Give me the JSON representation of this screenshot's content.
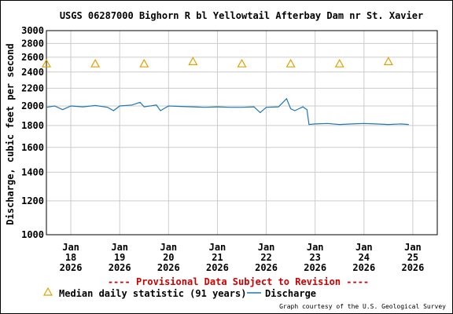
{
  "chart_data": {
    "type": "line",
    "title": "USGS 06287000 Bighorn R bl Yellowtail Afterbay Dam nr St. Xavier",
    "ylabel": "Discharge, cubic feet per second",
    "xlabel": "",
    "yscale": "log",
    "ylim": [
      1000,
      3000
    ],
    "yticks": [
      1000,
      1200,
      1400,
      1600,
      1800,
      2000,
      2200,
      2400,
      2600,
      2800,
      3000
    ],
    "ytick_labels": [
      "1000",
      "1200",
      "1400",
      "1600",
      "1800",
      "2000",
      "2200",
      "2400",
      "2600",
      "2800",
      "3000"
    ],
    "xlim": [
      "2026-01-17T12:00",
      "2026-01-25T12:00"
    ],
    "xticks": [
      {
        "month": "Jan",
        "day": "18",
        "year": "2026",
        "t": "2026-01-18"
      },
      {
        "month": "Jan",
        "day": "19",
        "year": "2026",
        "t": "2026-01-19"
      },
      {
        "month": "Jan",
        "day": "20",
        "year": "2026",
        "t": "2026-01-20"
      },
      {
        "month": "Jan",
        "day": "21",
        "year": "2026",
        "t": "2026-01-21"
      },
      {
        "month": "Jan",
        "day": "22",
        "year": "2026",
        "t": "2026-01-22"
      },
      {
        "month": "Jan",
        "day": "23",
        "year": "2026",
        "t": "2026-01-23"
      },
      {
        "month": "Jan",
        "day": "24",
        "year": "2026",
        "t": "2026-01-24"
      },
      {
        "month": "Jan",
        "day": "25",
        "year": "2026",
        "t": "2026-01-25"
      }
    ],
    "grid": true,
    "series": [
      {
        "name": "Discharge",
        "color": "#1f77b4",
        "style": "line",
        "points": [
          {
            "t": "2026-01-17T12:00",
            "v": 1985
          },
          {
            "t": "2026-01-17T16:00",
            "v": 2000
          },
          {
            "t": "2026-01-17T20:00",
            "v": 1960
          },
          {
            "t": "2026-01-18T00:00",
            "v": 2000
          },
          {
            "t": "2026-01-18T06:00",
            "v": 1990
          },
          {
            "t": "2026-01-18T12:00",
            "v": 2005
          },
          {
            "t": "2026-01-18T18:00",
            "v": 1985
          },
          {
            "t": "2026-01-18T21:00",
            "v": 1950
          },
          {
            "t": "2026-01-19T00:00",
            "v": 2000
          },
          {
            "t": "2026-01-19T06:00",
            "v": 2010
          },
          {
            "t": "2026-01-19T10:00",
            "v": 2040
          },
          {
            "t": "2026-01-19T12:00",
            "v": 1990
          },
          {
            "t": "2026-01-19T18:00",
            "v": 2010
          },
          {
            "t": "2026-01-19T20:00",
            "v": 1950
          },
          {
            "t": "2026-01-20T00:00",
            "v": 2000
          },
          {
            "t": "2026-01-20T06:00",
            "v": 1995
          },
          {
            "t": "2026-01-20T12:00",
            "v": 1990
          },
          {
            "t": "2026-01-20T18:00",
            "v": 1985
          },
          {
            "t": "2026-01-21T00:00",
            "v": 1990
          },
          {
            "t": "2026-01-21T06:00",
            "v": 1985
          },
          {
            "t": "2026-01-21T12:00",
            "v": 1985
          },
          {
            "t": "2026-01-21T18:00",
            "v": 1990
          },
          {
            "t": "2026-01-21T21:00",
            "v": 1930
          },
          {
            "t": "2026-01-22T00:00",
            "v": 1985
          },
          {
            "t": "2026-01-22T06:00",
            "v": 1990
          },
          {
            "t": "2026-01-22T10:00",
            "v": 2080
          },
          {
            "t": "2026-01-22T12:00",
            "v": 1970
          },
          {
            "t": "2026-01-22T14:00",
            "v": 1950
          },
          {
            "t": "2026-01-22T18:00",
            "v": 1990
          },
          {
            "t": "2026-01-22T20:00",
            "v": 1960
          },
          {
            "t": "2026-01-22T21:00",
            "v": 1810
          },
          {
            "t": "2026-01-23T00:00",
            "v": 1815
          },
          {
            "t": "2026-01-23T06:00",
            "v": 1820
          },
          {
            "t": "2026-01-23T12:00",
            "v": 1810
          },
          {
            "t": "2026-01-23T18:00",
            "v": 1815
          },
          {
            "t": "2026-01-24T00:00",
            "v": 1820
          },
          {
            "t": "2026-01-24T06:00",
            "v": 1815
          },
          {
            "t": "2026-01-24T12:00",
            "v": 1810
          },
          {
            "t": "2026-01-24T18:00",
            "v": 1815
          },
          {
            "t": "2026-01-24T22:00",
            "v": 1810
          }
        ]
      },
      {
        "name": "Median daily statistic (91 years)",
        "color": "#e0a000",
        "style": "triangle",
        "points": [
          {
            "t": "2026-01-17T12:00",
            "v": 2510
          },
          {
            "t": "2026-01-18T12:00",
            "v": 2510
          },
          {
            "t": "2026-01-19T12:00",
            "v": 2510
          },
          {
            "t": "2026-01-20T12:00",
            "v": 2540
          },
          {
            "t": "2026-01-21T12:00",
            "v": 2510
          },
          {
            "t": "2026-01-22T12:00",
            "v": 2510
          },
          {
            "t": "2026-01-23T12:00",
            "v": 2510
          },
          {
            "t": "2026-01-24T12:00",
            "v": 2540
          }
        ]
      }
    ],
    "provisional_note": "---- Provisional Data Subject to Revision ----",
    "credit": "Graph courtesy of the U.S. Geological Survey",
    "legend_placement": "bottom"
  }
}
